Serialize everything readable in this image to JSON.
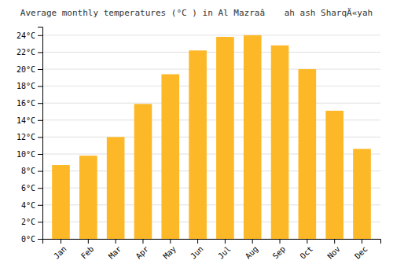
{
  "chart_data": {
    "type": "bar",
    "title": "Average monthly temperatures (°C ) in Al Mazraâ ah ash SharqÄ«yah",
    "categories": [
      "Jan",
      "Feb",
      "Mar",
      "Apr",
      "May",
      "Jun",
      "Jul",
      "Aug",
      "Sep",
      "Oct",
      "Nov",
      "Dec"
    ],
    "values": [
      8.7,
      9.8,
      12.0,
      15.9,
      19.4,
      22.2,
      23.8,
      24.0,
      22.8,
      20.0,
      15.1,
      10.6
    ],
    "color": "#FDB827",
    "ylim": [
      0,
      25
    ],
    "yticks": [
      {
        "value": 0,
        "label": "0°C"
      },
      {
        "value": 2,
        "label": "2°C"
      },
      {
        "value": 4,
        "label": "4°C"
      },
      {
        "value": 6,
        "label": "6°C"
      },
      {
        "value": 8,
        "label": "8°C"
      },
      {
        "value": 10,
        "label": "10°C"
      },
      {
        "value": 12,
        "label": "12°C"
      },
      {
        "value": 14,
        "label": "14°C"
      },
      {
        "value": 16,
        "label": "16°C"
      },
      {
        "value": 18,
        "label": "18°C"
      },
      {
        "value": 20,
        "label": "20°C"
      },
      {
        "value": 22,
        "label": "22°C"
      },
      {
        "value": 24,
        "label": "24°C"
      }
    ],
    "grid": true
  }
}
